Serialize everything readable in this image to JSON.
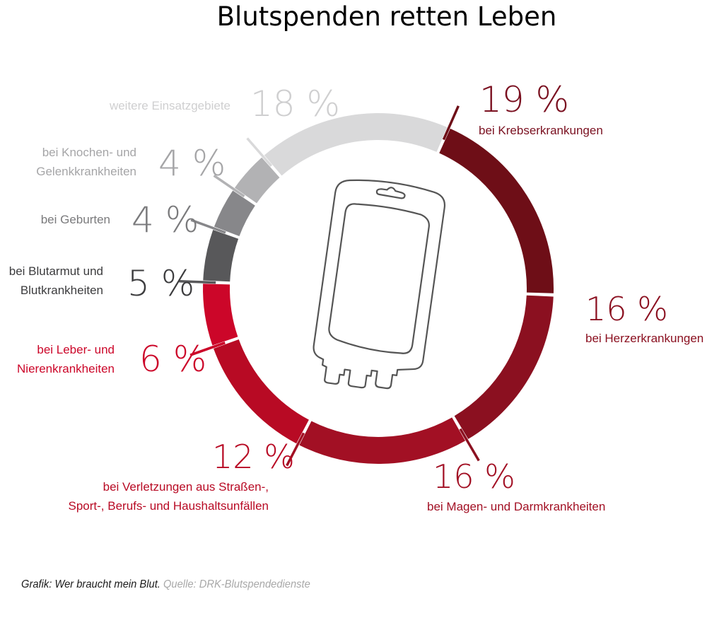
{
  "title": "Blutspenden retten Leben",
  "footer": {
    "grafik": "Grafik: Wer braucht mein Blut.",
    "quelle": "Quelle: DRK-Blutspendedienste"
  },
  "chart_data": {
    "type": "pie",
    "subtype": "donut",
    "title": "Blutspenden retten Leben",
    "center_icon": "blood-bag-icon",
    "direction": "clockwise",
    "unit": "%",
    "slices": [
      {
        "key": "krebs",
        "value": 19,
        "value_label": "19 %",
        "label_lines": [
          "bei Krebserkrankungen"
        ],
        "color": "#6e0e17",
        "text_color": "#7a1020"
      },
      {
        "key": "herz",
        "value": 16,
        "value_label": "16 %",
        "label_lines": [
          "bei Herzerkrankungen"
        ],
        "color": "#8b1020",
        "text_color": "#8b1020"
      },
      {
        "key": "magen",
        "value": 16,
        "value_label": "16 %",
        "label_lines": [
          "bei Magen- und Darmkrankheiten"
        ],
        "color": "#a21024",
        "text_color": "#a21024"
      },
      {
        "key": "verletzungen",
        "value": 12,
        "value_label": "12 %",
        "label_lines": [
          "bei Verletzungen aus Straßen-,",
          "Sport-, Berufs- und Haushaltsunfällen"
        ],
        "color": "#b80a24",
        "text_color": "#b80a24"
      },
      {
        "key": "leber",
        "value": 6,
        "value_label": "6 %",
        "label_lines": [
          "bei Leber- und",
          "Nierenkrankheiten"
        ],
        "color": "#cc0629",
        "text_color": "#cc0629"
      },
      {
        "key": "blutarmut",
        "value": 5,
        "value_label": "5 %",
        "label_lines": [
          "bei Blutarmut und",
          "Blutkrankheiten"
        ],
        "color": "#58585a",
        "text_color": "#3c3c3e"
      },
      {
        "key": "geburten",
        "value": 4,
        "value_label": "4 %",
        "label_lines": [
          "bei Geburten"
        ],
        "color": "#87878a",
        "text_color": "#7a7a7c"
      },
      {
        "key": "knochen",
        "value": 4,
        "value_label": "4 %",
        "label_lines": [
          "bei Knochen- und",
          "Gelenkkrankheiten"
        ],
        "color": "#b2b2b4",
        "text_color": "#a5a5a7"
      },
      {
        "key": "weitere",
        "value": 18,
        "value_label": "18 %",
        "label_lines": [
          "weitere Einsatzgebiete"
        ],
        "color": "#d9d9da",
        "text_color": "#cfcfd0"
      }
    ]
  }
}
